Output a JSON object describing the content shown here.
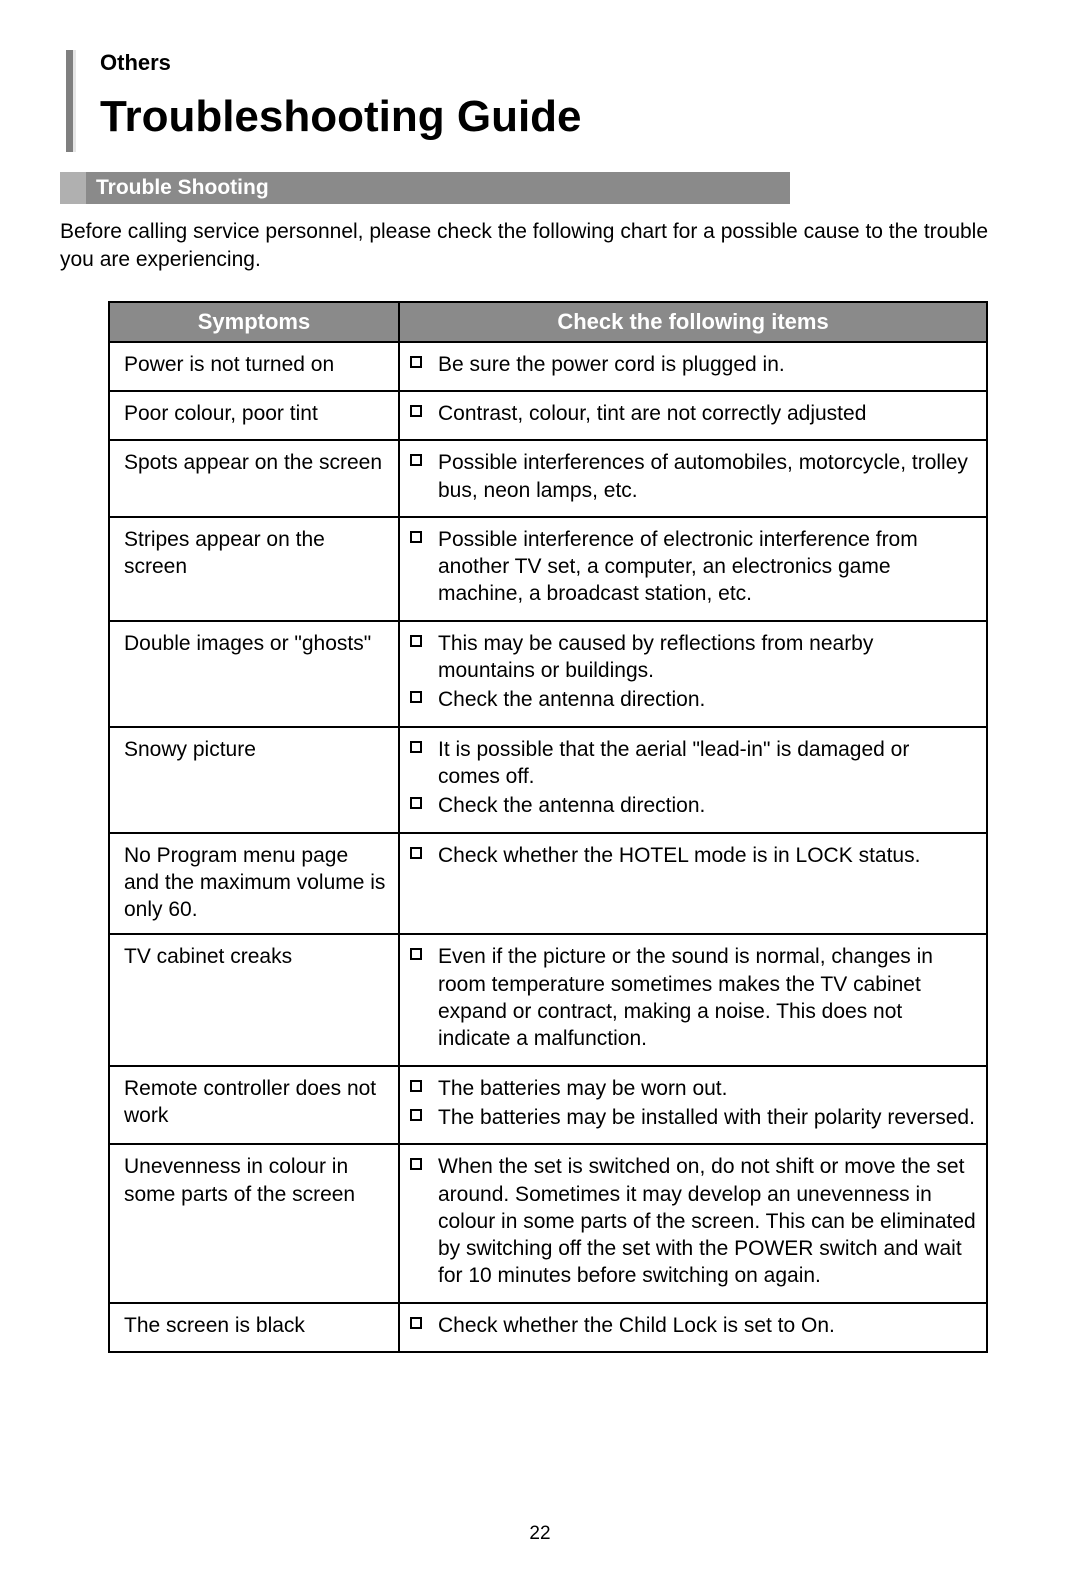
{
  "sectionLabel": "Others",
  "pageTitle": "Troubleshooting Guide",
  "subsectionTitle": "Trouble Shooting",
  "introText": "Before calling service personnel, please check the following chart for a possible cause to the trouble you are experiencing.",
  "tableHeaders": {
    "symptoms": "Symptoms",
    "check": "Check the following items"
  },
  "rows": [
    {
      "symptom": "Power is not turned on",
      "checks": [
        "Be sure the power cord is plugged in."
      ]
    },
    {
      "symptom": "Poor colour, poor tint",
      "checks": [
        "Contrast, colour, tint are not correctly adjusted"
      ]
    },
    {
      "symptom": "Spots appear on the screen",
      "checks": [
        "Possible interferences of automobiles, motorcycle, trolley bus, neon lamps, etc."
      ]
    },
    {
      "symptom": "Stripes appear on the screen",
      "checks": [
        "Possible interference of electronic interference from another TV set, a computer, an electronics game machine, a broadcast station, etc."
      ]
    },
    {
      "symptom": "Double images or \"ghosts\"",
      "checks": [
        "This may be caused by reflections from nearby mountains or buildings.",
        "Check the antenna direction."
      ]
    },
    {
      "symptom": "Snowy picture",
      "checks": [
        "It is possible that the aerial \"lead-in\" is damaged or comes off.",
        "Check the antenna direction."
      ]
    },
    {
      "symptom": "No Program menu page and the maximum volume is only 60.",
      "checks": [
        "Check whether the HOTEL mode is in LOCK status."
      ]
    },
    {
      "symptom": "TV cabinet creaks",
      "checks": [
        "Even if the picture or the sound is normal, changes in room temperature sometimes makes the TV cabinet expand or contract, making a noise. This does not indicate a malfunction."
      ]
    },
    {
      "symptom": "Remote controller does not work",
      "checks": [
        "The batteries may be worn out.",
        "The batteries may be installed with their polarity reversed."
      ]
    },
    {
      "symptom": "Unevenness in colour in some parts of the screen",
      "checks": [
        "When the set is switched on, do not shift or move the set around. Sometimes it may develop an unevenness in colour in some parts of the screen. This can be eliminated by switching off the set with the POWER switch and wait for 10 minutes before switching on again."
      ]
    },
    {
      "symptom": "The screen is black",
      "checks": [
        "Check whether the Child Lock is set to On."
      ]
    }
  ],
  "pageNumber": "22",
  "colors": {
    "barAccent": "#b0b0b0",
    "barBody": "#8a8a8a",
    "ruleGray": "#7f7f7f",
    "text": "#000000",
    "bg": "#ffffff"
  }
}
